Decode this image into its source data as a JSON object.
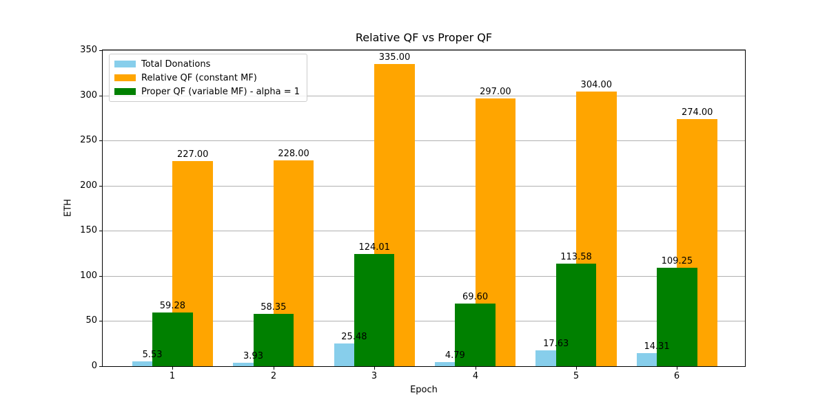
{
  "chart_data": {
    "type": "bar",
    "title": "Relative QF vs Proper QF",
    "xlabel": "Epoch",
    "ylabel": "ETH",
    "categories": [
      "1",
      "2",
      "3",
      "4",
      "5",
      "6"
    ],
    "series": [
      {
        "name": "Total Donations",
        "color": "#87CEEB",
        "values": [
          5.53,
          3.93,
          25.48,
          4.79,
          17.63,
          14.31
        ],
        "x_offset": -0.2,
        "bar_width": 0.4
      },
      {
        "name": "Relative QF (constant MF)",
        "color": "#FFA500",
        "values": [
          227.0,
          228.0,
          335.0,
          297.0,
          304.0,
          274.0
        ],
        "x_offset": 0.2,
        "bar_width": 0.4
      },
      {
        "name": "Proper QF (variable MF) - alpha = 1",
        "color": "#008000",
        "values": [
          59.28,
          58.35,
          124.01,
          69.6,
          113.58,
          109.25
        ],
        "x_offset": 0.0,
        "bar_width": 0.4
      }
    ],
    "ylim": [
      0,
      350
    ],
    "yticks": [
      0,
      50,
      100,
      150,
      200,
      250,
      300,
      350
    ],
    "grid": true,
    "grid_color": "#b0b0b0",
    "legend_position": "upper left",
    "bar_label_decimals": 2
  }
}
